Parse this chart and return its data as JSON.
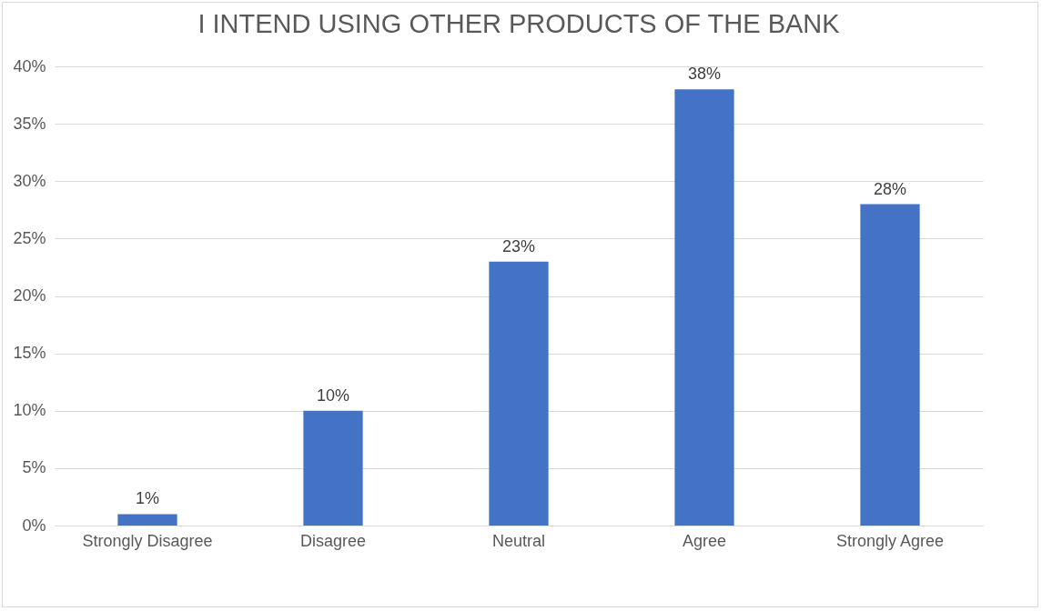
{
  "chart_data": {
    "type": "bar",
    "title": "I INTEND USING OTHER PRODUCTS OF THE BANK",
    "categories": [
      "Strongly Disagree",
      "Disagree",
      "Neutral",
      "Agree",
      "Strongly Agree"
    ],
    "values": [
      1,
      10,
      23,
      38,
      28
    ],
    "value_labels": [
      "1%",
      "10%",
      "23%",
      "38%",
      "28%"
    ],
    "color": "#4472c4",
    "ylim": [
      0,
      40
    ],
    "yticks": [
      {
        "value": 0,
        "label": "0%"
      },
      {
        "value": 5,
        "label": "5%"
      },
      {
        "value": 10,
        "label": "10%"
      },
      {
        "value": 15,
        "label": "15%"
      },
      {
        "value": 20,
        "label": "20%"
      },
      {
        "value": 25,
        "label": "25%"
      },
      {
        "value": 30,
        "label": "30%"
      },
      {
        "value": 35,
        "label": "35%"
      },
      {
        "value": 40,
        "label": "40%"
      }
    ],
    "grid": "y"
  }
}
